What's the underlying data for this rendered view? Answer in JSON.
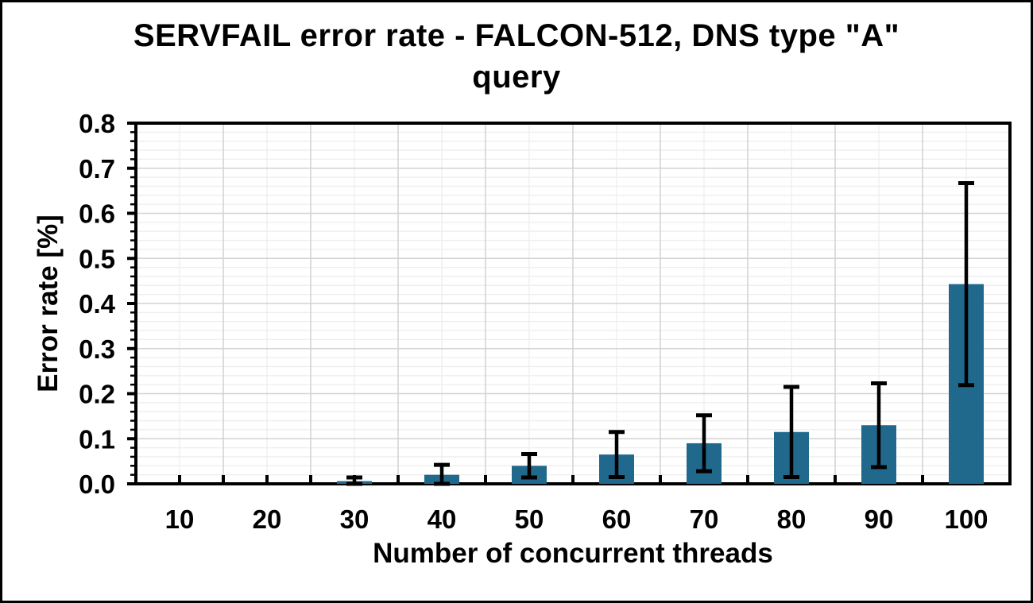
{
  "title": {
    "line1": "SERVFAIL error rate - FALCON-512, DNS type \"A\"",
    "line2": "query"
  },
  "chart_data": {
    "type": "bar",
    "title": "SERVFAIL error rate - FALCON-512, DNS type \"A\" query",
    "xlabel": "Number of concurrent threads",
    "ylabel": "Error rate [%]",
    "categories": [
      "10",
      "20",
      "30",
      "40",
      "50",
      "60",
      "70",
      "80",
      "90",
      "100"
    ],
    "values": [
      0,
      0,
      0.006,
      0.02,
      0.04,
      0.065,
      0.09,
      0.115,
      0.13,
      0.443
    ],
    "error_bars": [
      0,
      0,
      0.008,
      0.022,
      0.026,
      0.05,
      0.062,
      0.1,
      0.093,
      0.224
    ],
    "ylim": [
      0,
      0.8
    ],
    "ytick_step": 0.1,
    "ytick_labels": [
      "0.0",
      "0.1",
      "0.2",
      "0.3",
      "0.4",
      "0.5",
      "0.6",
      "0.7",
      "0.8"
    ],
    "minor_ytick_step": 0.02,
    "grid": "major and minor, horizontal and vertical",
    "legend": "none",
    "colors": {
      "bar": "#20698C",
      "error_bar": "#000000",
      "frame": "#000000",
      "grid_major": "#d2d2d2",
      "grid_minor": "#eeeeee",
      "background": "#ffffff"
    }
  }
}
